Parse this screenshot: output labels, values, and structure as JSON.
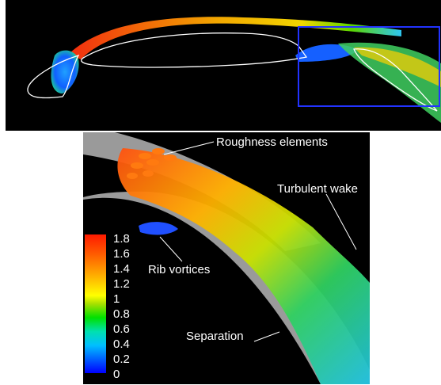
{
  "figure": {
    "annotations": {
      "roughness": "Roughness elements",
      "wake": "Turbulent wake",
      "rib": "Rib vortices",
      "separation": "Separation"
    },
    "colorbar": {
      "ticks": [
        "1.8",
        "1.6",
        "1.4",
        "1.2",
        "1",
        "0.8",
        "0.6",
        "0.4",
        "0.2",
        "0"
      ],
      "colors": [
        "#0000ff",
        "#00bfff",
        "#00e000",
        "#ffff00",
        "#ff6000",
        "#ff1a00"
      ]
    },
    "colors": {
      "zoom_box": "#2233ff",
      "surface": "#9a9a9a",
      "outline": "#ffffff"
    }
  }
}
